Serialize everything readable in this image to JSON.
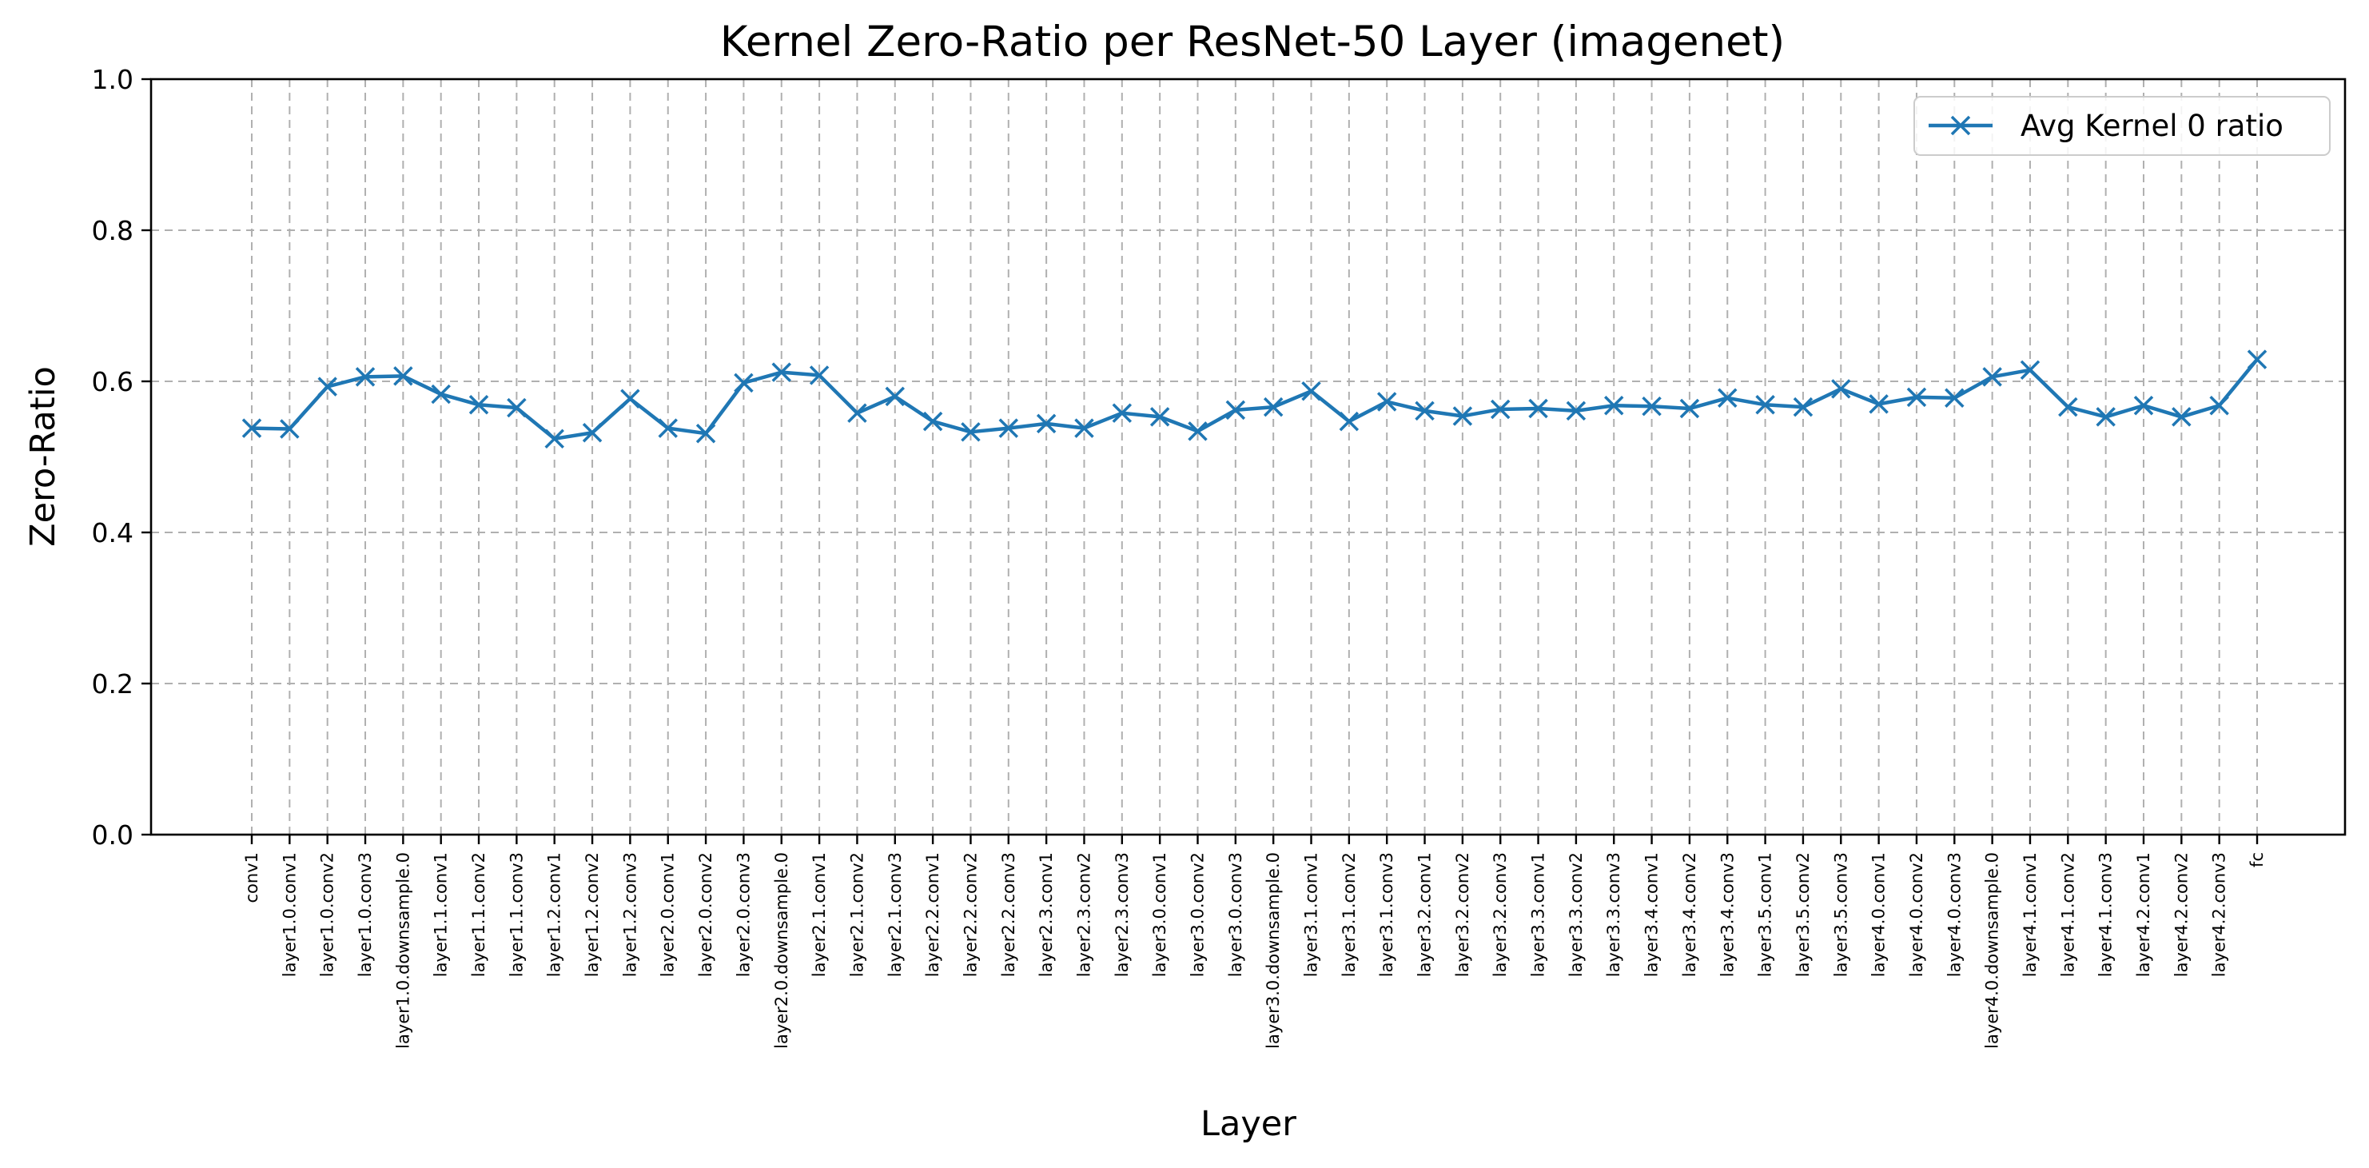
{
  "chart_data": {
    "type": "line",
    "title": "Kernel Zero-Ratio per ResNet-50 Layer (imagenet)",
    "xlabel": "Layer",
    "ylabel": "Zero-Ratio",
    "ylim": [
      0.0,
      1.0
    ],
    "yticks": [
      "0.0",
      "0.2",
      "0.4",
      "0.6",
      "0.8",
      "1.0"
    ],
    "grid": true,
    "legend_position": "top-right",
    "categories": [
      "conv1",
      "layer1.0.conv1",
      "layer1.0.conv2",
      "layer1.0.conv3",
      "layer1.0.downsample.0",
      "layer1.1.conv1",
      "layer1.1.conv2",
      "layer1.1.conv3",
      "layer1.2.conv1",
      "layer1.2.conv2",
      "layer1.2.conv3",
      "layer2.0.conv1",
      "layer2.0.conv2",
      "layer2.0.conv3",
      "layer2.0.downsample.0",
      "layer2.1.conv1",
      "layer2.1.conv2",
      "layer2.1.conv3",
      "layer2.2.conv1",
      "layer2.2.conv2",
      "layer2.2.conv3",
      "layer2.3.conv1",
      "layer2.3.conv2",
      "layer2.3.conv3",
      "layer3.0.conv1",
      "layer3.0.conv2",
      "layer3.0.conv3",
      "layer3.0.downsample.0",
      "layer3.1.conv1",
      "layer3.1.conv2",
      "layer3.1.conv3",
      "layer3.2.conv1",
      "layer3.2.conv2",
      "layer3.2.conv3",
      "layer3.3.conv1",
      "layer3.3.conv2",
      "layer3.3.conv3",
      "layer3.4.conv1",
      "layer3.4.conv2",
      "layer3.4.conv3",
      "layer3.5.conv1",
      "layer3.5.conv2",
      "layer3.5.conv3",
      "layer4.0.conv1",
      "layer4.0.conv2",
      "layer4.0.conv3",
      "layer4.0.downsample.0",
      "layer4.1.conv1",
      "layer4.1.conv2",
      "layer4.1.conv3",
      "layer4.2.conv1",
      "layer4.2.conv2",
      "layer4.2.conv3",
      "fc"
    ],
    "series": [
      {
        "name": "Avg Kernel 0 ratio",
        "color": "#1f77b4",
        "marker": "x",
        "values": [
          0.538,
          0.537,
          0.593,
          0.606,
          0.607,
          0.583,
          0.569,
          0.565,
          0.524,
          0.532,
          0.577,
          0.538,
          0.531,
          0.598,
          0.612,
          0.608,
          0.558,
          0.58,
          0.547,
          0.533,
          0.538,
          0.544,
          0.538,
          0.558,
          0.553,
          0.534,
          0.562,
          0.566,
          0.587,
          0.547,
          0.573,
          0.561,
          0.554,
          0.563,
          0.564,
          0.561,
          0.568,
          0.567,
          0.564,
          0.578,
          0.569,
          0.566,
          0.59,
          0.57,
          0.579,
          0.578,
          0.606,
          0.615,
          0.566,
          0.553,
          0.568,
          0.553,
          0.568,
          0.629
        ]
      }
    ]
  }
}
